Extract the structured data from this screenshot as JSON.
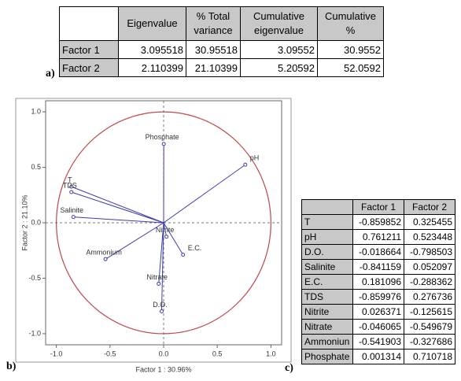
{
  "panel_labels": [
    "a)",
    "b)",
    "c)"
  ],
  "table_a": {
    "header": [
      "Eigenvalue",
      "% Total variance",
      "Cumulative eigenvalue",
      "Cumulative %"
    ],
    "rows": [
      [
        "Factor 1",
        "3.095518",
        "30.95518",
        "3.09552",
        "30.9552"
      ],
      [
        "Factor 2",
        "2.110399",
        "21.10399",
        "5.20592",
        "52.0592"
      ]
    ]
  },
  "chart_data": {
    "type": "biplot",
    "xlabel": "Factor 1 : 30.96%",
    "ylabel": "Factor 2 : 21.10%",
    "xlim": [
      -1.1,
      1.1
    ],
    "ylim": [
      -1.1,
      1.1
    ],
    "xticks": [
      {
        "value": -1,
        "label": "-1.0"
      },
      -0.5,
      {
        "value": 0,
        "label": "0.0"
      },
      0.5,
      {
        "value": 1,
        "label": "1.0"
      }
    ],
    "yticks": [
      {
        "value": -1,
        "label": "-1.0"
      },
      -0.5,
      {
        "value": 0,
        "label": "0.0"
      },
      0.5,
      {
        "value": 1,
        "label": "1.0"
      }
    ],
    "color": "#3c3ca8",
    "circle_color": "#c04848",
    "points": [
      {
        "name": "T",
        "x": -0.859852,
        "y": 0.325455
      },
      {
        "name": "pH",
        "x": 0.761211,
        "y": 0.523448
      },
      {
        "name": "D.O.",
        "x": -0.018664,
        "y": -0.798503
      },
      {
        "name": "Salinite",
        "x": -0.841159,
        "y": 0.052097
      },
      {
        "name": "E.C.",
        "x": 0.181096,
        "y": -0.288362
      },
      {
        "name": "TDS",
        "x": -0.859976,
        "y": 0.276736
      },
      {
        "name": "Nitrite",
        "x": 0.026371,
        "y": -0.125615
      },
      {
        "name": "Nitrate",
        "x": -0.046065,
        "y": -0.549679
      },
      {
        "name": "Ammonium",
        "x": -0.541903,
        "y": -0.327686
      },
      {
        "name": "Phosphate",
        "x": 0.001314,
        "y": 0.710718
      }
    ]
  },
  "table_c": {
    "header": [
      "Factor 1",
      "Factor 2"
    ],
    "rows": [
      [
        "T",
        "-0.859852",
        "0.325455"
      ],
      [
        "pH",
        "0.761211",
        "0.523448"
      ],
      [
        "D.O.",
        "-0.018664",
        "-0.798503"
      ],
      [
        "Salinite",
        "-0.841159",
        "0.052097"
      ],
      [
        "E.C.",
        "0.181096",
        "-0.288362"
      ],
      [
        "TDS",
        "-0.859976",
        "0.276736"
      ],
      [
        "Nitrite",
        "0.026371",
        "-0.125615"
      ],
      [
        "Nitrate",
        "-0.046065",
        "-0.549679"
      ],
      [
        "Ammoniun",
        "-0.541903",
        "-0.327686"
      ],
      [
        "Phosphate",
        "0.001314",
        "0.710718"
      ]
    ]
  }
}
